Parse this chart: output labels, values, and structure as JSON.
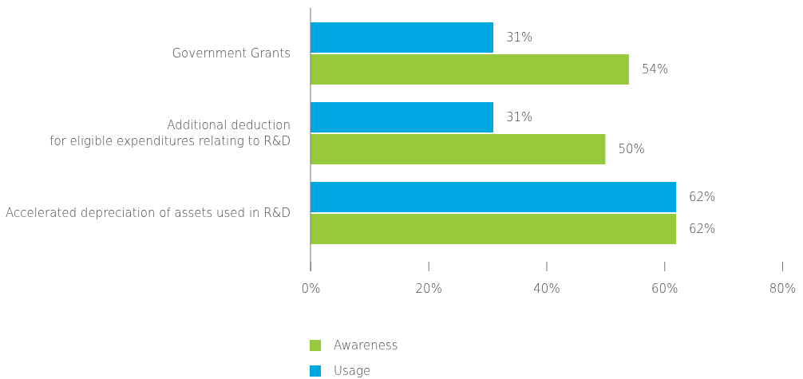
{
  "chart_data": {
    "type": "bar",
    "orientation": "horizontal",
    "categories": [
      "Government Grants",
      "Additional deduction\nfor eligible expenditures relating to R&D",
      "Accelerated depreciation of assets used in R&D"
    ],
    "series": [
      {
        "name": "Awareness",
        "color": "#97c93d",
        "values": [
          54,
          50,
          62
        ],
        "value_labels": [
          "54%",
          "50%",
          "62%"
        ]
      },
      {
        "name": "Usage",
        "color": "#00a8e1",
        "values": [
          31,
          31,
          62
        ],
        "value_labels": [
          "31%",
          "31%",
          "62%"
        ]
      }
    ],
    "xlim": [
      0,
      80
    ],
    "xticks": [
      {
        "value": 0,
        "label": "0%"
      },
      {
        "value": 20,
        "label": "20%"
      },
      {
        "value": 40,
        "label": "40%"
      },
      {
        "value": 60,
        "label": "60%"
      },
      {
        "value": 80,
        "label": "80%"
      }
    ],
    "grid": false,
    "legend": "bottom"
  }
}
